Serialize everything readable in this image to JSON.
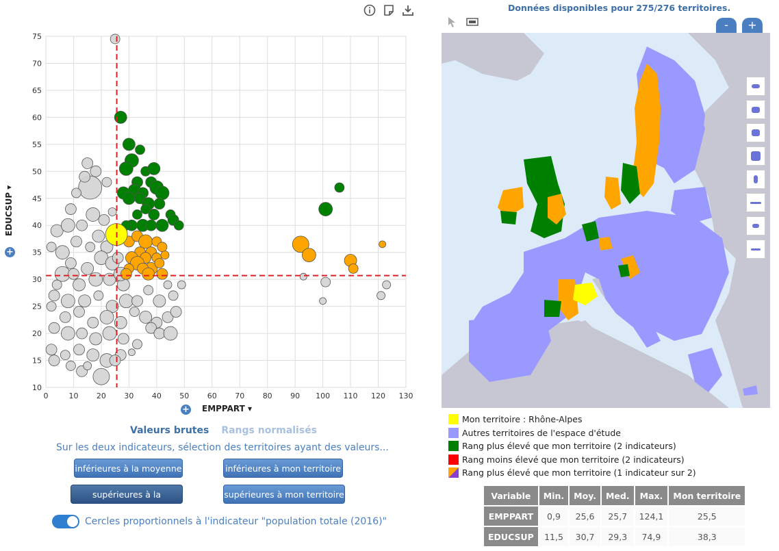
{
  "toolbar": {
    "icons": [
      "info-icon",
      "note-icon",
      "download-icon"
    ]
  },
  "chart_data": {
    "type": "scatter",
    "xlabel": "EMPPART",
    "ylabel": "EDUCSUP",
    "xlim": [
      0,
      130
    ],
    "ylim": [
      10,
      75
    ],
    "xticks": [
      "0",
      "10",
      "20",
      "30",
      "40",
      "50",
      "60",
      "70",
      "80",
      "90",
      "100",
      "110",
      "120",
      "130"
    ],
    "yticks": [
      "10",
      "15",
      "20",
      "25",
      "30",
      "35",
      "40",
      "45",
      "50",
      "55",
      "60",
      "65",
      "70",
      "75"
    ],
    "mean_lines": {
      "x": 25.6,
      "y": 30.7
    },
    "series": [
      {
        "category": "green",
        "color": "#008000",
        "points": [
          [
            27,
            60,
            9
          ],
          [
            30,
            55,
            9
          ],
          [
            34,
            54,
            7
          ],
          [
            31,
            52,
            10
          ],
          [
            29,
            50.5,
            10
          ],
          [
            36,
            50,
            7
          ],
          [
            39,
            50.5,
            9
          ],
          [
            33,
            48,
            8
          ],
          [
            38,
            48,
            8
          ],
          [
            28,
            46,
            9
          ],
          [
            32,
            46.5,
            9
          ],
          [
            40,
            47,
            10
          ],
          [
            35,
            46,
            8
          ],
          [
            42,
            46,
            10
          ],
          [
            30,
            45,
            9
          ],
          [
            34,
            45,
            8
          ],
          [
            37,
            44,
            9
          ],
          [
            41,
            44,
            8
          ],
          [
            36,
            43,
            7
          ],
          [
            39,
            42,
            8
          ],
          [
            33,
            42,
            7
          ],
          [
            45,
            42,
            7
          ],
          [
            31,
            40,
            8
          ],
          [
            35,
            40,
            9
          ],
          [
            38,
            40,
            8
          ],
          [
            42,
            40,
            9
          ],
          [
            46,
            41,
            8
          ],
          [
            48,
            40,
            7
          ],
          [
            29,
            40,
            7
          ],
          [
            106,
            47,
            7
          ],
          [
            101,
            43,
            10
          ]
        ]
      },
      {
        "category": "orange",
        "color": "#ffa500",
        "points": [
          [
            30,
            37,
            8
          ],
          [
            33,
            38,
            8
          ],
          [
            36,
            37,
            10
          ],
          [
            40,
            37,
            7
          ],
          [
            38,
            35,
            8
          ],
          [
            42,
            36,
            7
          ],
          [
            34,
            35,
            8
          ],
          [
            31,
            34,
            9
          ],
          [
            36,
            34,
            8
          ],
          [
            40,
            34,
            7
          ],
          [
            43,
            34.5,
            6
          ],
          [
            33,
            33,
            10
          ],
          [
            38,
            32,
            9
          ],
          [
            30,
            32,
            7
          ],
          [
            35,
            32,
            8
          ],
          [
            41,
            33,
            7
          ],
          [
            29,
            31,
            8
          ],
          [
            37,
            31,
            9
          ],
          [
            42,
            31,
            8
          ],
          [
            92,
            36.5,
            12
          ],
          [
            95,
            34.5,
            10
          ],
          [
            110,
            33.5,
            9
          ],
          [
            111,
            32,
            7
          ],
          [
            121.5,
            36.5,
            5
          ]
        ]
      },
      {
        "category": "grey",
        "color": "#d3d3d3",
        "points": [
          [
            16,
            47,
            17
          ],
          [
            18,
            50,
            8
          ],
          [
            14,
            49,
            8
          ],
          [
            11,
            46,
            7
          ],
          [
            22,
            48,
            7
          ],
          [
            9,
            43,
            8
          ],
          [
            17,
            42,
            10
          ],
          [
            21,
            41,
            8
          ],
          [
            4,
            39,
            9
          ],
          [
            8,
            40,
            10
          ],
          [
            13,
            40,
            8
          ],
          [
            19,
            38,
            9
          ],
          [
            2,
            36,
            7
          ],
          [
            6,
            35,
            10
          ],
          [
            11,
            37,
            8
          ],
          [
            16,
            36,
            7
          ],
          [
            22,
            36,
            9
          ],
          [
            9,
            33,
            8
          ],
          [
            15,
            32,
            9
          ],
          [
            20,
            34,
            10
          ],
          [
            24,
            33,
            10
          ],
          [
            6,
            31,
            11
          ],
          [
            12,
            29,
            9
          ],
          [
            18,
            30,
            10
          ],
          [
            23,
            30,
            9
          ],
          [
            28,
            29,
            9
          ],
          [
            3,
            27,
            8
          ],
          [
            8,
            26,
            10
          ],
          [
            14,
            26,
            9
          ],
          [
            19,
            27,
            7
          ],
          [
            24,
            25,
            9
          ],
          [
            29,
            26,
            10
          ],
          [
            33,
            26,
            8
          ],
          [
            37,
            28,
            7
          ],
          [
            41,
            26,
            9
          ],
          [
            46,
            27,
            7
          ],
          [
            2,
            25,
            7
          ],
          [
            7,
            23,
            8
          ],
          [
            12,
            24,
            8
          ],
          [
            17,
            22,
            8
          ],
          [
            22,
            23,
            10
          ],
          [
            27,
            22,
            9
          ],
          [
            32,
            24,
            7
          ],
          [
            36,
            23,
            9
          ],
          [
            40,
            22,
            8
          ],
          [
            44,
            23,
            8
          ],
          [
            47,
            24,
            8
          ],
          [
            3,
            21,
            8
          ],
          [
            8,
            20,
            10
          ],
          [
            13,
            20,
            8
          ],
          [
            18,
            19,
            9
          ],
          [
            23,
            20,
            10
          ],
          [
            28,
            19,
            8
          ],
          [
            33,
            18,
            7
          ],
          [
            38,
            21,
            8
          ],
          [
            41,
            20,
            8
          ],
          [
            2,
            17,
            8
          ],
          [
            7,
            16,
            7
          ],
          [
            12,
            17,
            8
          ],
          [
            17,
            16,
            9
          ],
          [
            22,
            15,
            10
          ],
          [
            27,
            16,
            8
          ],
          [
            3,
            15,
            8
          ],
          [
            9,
            14,
            7
          ],
          [
            13,
            13,
            8
          ],
          [
            20,
            12,
            12
          ],
          [
            25,
            15,
            8
          ],
          [
            15,
            51.5,
            8
          ],
          [
            24,
            42.5,
            6
          ],
          [
            10,
            31,
            8
          ],
          [
            26,
            34,
            8
          ],
          [
            27,
            31,
            10
          ],
          [
            4,
            29,
            7
          ],
          [
            44,
            29,
            6
          ],
          [
            49,
            29,
            6
          ],
          [
            93,
            30.5,
            5
          ],
          [
            101,
            29.5,
            7
          ],
          [
            100,
            26,
            5
          ],
          [
            123,
            29,
            6
          ],
          [
            121,
            27,
            6
          ],
          [
            31,
            16.5,
            5
          ],
          [
            15,
            14,
            6
          ],
          [
            45,
            20,
            10
          ],
          [
            25,
            74.5,
            7
          ]
        ]
      },
      {
        "category": "yellow",
        "color": "#ffff00",
        "points": [
          [
            25.5,
            38.3,
            16
          ]
        ]
      }
    ]
  },
  "axes": {
    "xlabel": "EMPPART ▾",
    "ylabel": "EDUCSUP ▾"
  },
  "tabs": {
    "raw": "Valeurs brutes",
    "ranks": "Rangs normalisés"
  },
  "selection": {
    "heading": "Sur les deux indicateurs, sélection des territoires ayant des valeurs...",
    "btn_lower_mean": "inférieures à la moyenne",
    "btn_lower_terr": "inférieures à mon territoire",
    "btn_upper_mean": "supérieures à la moyenne",
    "btn_upper_terr": "supérieures à mon territoire"
  },
  "toggle": {
    "label": "Cercles proportionnels à l'indicateur \"population totale (2016)\""
  },
  "map": {
    "header": "Données disponibles pour 275/276 territoires.",
    "zoom_out": "-",
    "zoom_in": "+"
  },
  "legend": [
    {
      "color": "#ffff00",
      "label": "Mon territoire : Rhône-Alpes"
    },
    {
      "color": "#9999ff",
      "label": "Autres territoires de l'espace d'étude"
    },
    {
      "color": "#008000",
      "label": "Rang plus élevé que mon territoire (2 indicateurs)"
    },
    {
      "color": "#ff0000",
      "label": "Rang moins élevé que mon territoire (2 indicateurs)"
    },
    {
      "color": "split",
      "label": "Rang plus élevé que mon territoire (1 indicateur sur 2)"
    }
  ],
  "stats": {
    "headers": [
      "Variable",
      "Min.",
      "Moy.",
      "Med.",
      "Max.",
      "Mon territoire"
    ],
    "rows": [
      [
        "EMPPART",
        "0,9",
        "25,6",
        "25,7",
        "124,1",
        "25,5"
      ],
      [
        "EDUCSUP",
        "11,5",
        "30,7",
        "29,3",
        "74,9",
        "38,3"
      ]
    ]
  }
}
